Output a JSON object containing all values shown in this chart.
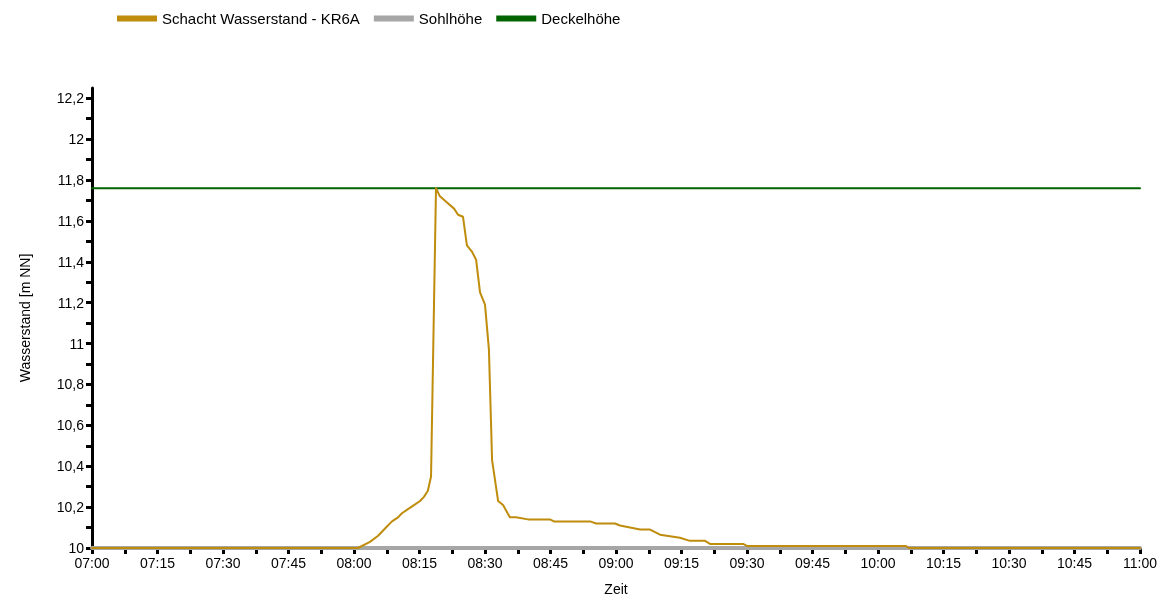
{
  "chart_data": {
    "type": "line",
    "xlabel": "Zeit",
    "ylabel": "Wasserstand [m NN]",
    "legend": "top",
    "grid": false,
    "marker": "none",
    "line_style": "solid",
    "xlim": [
      7,
      11
    ],
    "xticks": [
      {
        "value": 7,
        "label": "07:00"
      },
      {
        "value": 7.125,
        "label": null
      },
      {
        "value": 7.25,
        "label": "07:15"
      },
      {
        "value": 7.375,
        "label": null
      },
      {
        "value": 7.5,
        "label": "07:30"
      },
      {
        "value": 7.625,
        "label": null
      },
      {
        "value": 7.75,
        "label": "07:45"
      },
      {
        "value": 7.875,
        "label": null
      },
      {
        "value": 8,
        "label": "08:00"
      },
      {
        "value": 8.125,
        "label": null
      },
      {
        "value": 8.25,
        "label": "08:15"
      },
      {
        "value": 8.375,
        "label": null
      },
      {
        "value": 8.5,
        "label": "08:30"
      },
      {
        "value": 8.625,
        "label": null
      },
      {
        "value": 8.75,
        "label": "08:45"
      },
      {
        "value": 8.875,
        "label": null
      },
      {
        "value": 9,
        "label": "09:00"
      },
      {
        "value": 9.125,
        "label": null
      },
      {
        "value": 9.25,
        "label": "09:15"
      },
      {
        "value": 9.375,
        "label": null
      },
      {
        "value": 9.5,
        "label": "09:30"
      },
      {
        "value": 9.625,
        "label": null
      },
      {
        "value": 9.75,
        "label": "09:45"
      },
      {
        "value": 9.875,
        "label": null
      },
      {
        "value": 10,
        "label": "10:00"
      },
      {
        "value": 10.125,
        "label": null
      },
      {
        "value": 10.25,
        "label": "10:15"
      },
      {
        "value": 10.375,
        "label": null
      },
      {
        "value": 10.5,
        "label": "10:30"
      },
      {
        "value": 10.625,
        "label": null
      },
      {
        "value": 10.75,
        "label": "10:45"
      },
      {
        "value": 10.875,
        "label": null
      },
      {
        "value": 11,
        "label": "11:00"
      }
    ],
    "ylim": [
      10,
      12.25
    ],
    "yticks": [
      10,
      {
        "value": 10.1,
        "label": null
      },
      {
        "value": 10.2,
        "label": "10,2"
      },
      {
        "value": 10.3,
        "label": null
      },
      {
        "value": 10.4,
        "label": "10,4"
      },
      {
        "value": 10.5,
        "label": null
      },
      {
        "value": 10.6,
        "label": "10,6"
      },
      {
        "value": 10.7,
        "label": null
      },
      {
        "value": 10.8,
        "label": "10,8"
      },
      {
        "value": 10.9,
        "label": null
      },
      11,
      {
        "value": 11.1,
        "label": null
      },
      {
        "value": 11.2,
        "label": "11,2"
      },
      {
        "value": 11.3,
        "label": null
      },
      {
        "value": 11.4,
        "label": "11,4"
      },
      {
        "value": 11.5,
        "label": null
      },
      {
        "value": 11.6,
        "label": "11,6"
      },
      {
        "value": 11.7,
        "label": null
      },
      {
        "value": 11.8,
        "label": "11,8"
      },
      {
        "value": 11.9,
        "label": null
      },
      12,
      {
        "value": 12.1,
        "label": null
      },
      {
        "value": 12.2,
        "label": "12,2"
      }
    ],
    "series": [
      {
        "name": "Sohlhöhe",
        "color": "#a6a6a6",
        "x": [
          7,
          11
        ],
        "values": [
          10,
          10
        ]
      },
      {
        "name": "Deckelhöhe",
        "color": "#006400",
        "x": [
          7,
          11
        ],
        "values": [
          11.76,
          11.76
        ]
      },
      {
        "name": "Schacht Wasserstand - KR6A",
        "color": "#bf8c0c",
        "x": [
          7,
          8.015,
          8.061,
          8.092,
          8.122,
          8.145,
          8.168,
          8.183,
          8.206,
          8.229,
          8.252,
          8.267,
          8.282,
          8.294,
          8.313,
          8.328,
          8.355,
          8.382,
          8.397,
          8.416,
          8.431,
          8.45,
          8.466,
          8.481,
          8.5,
          8.515,
          8.527,
          8.55,
          8.569,
          8.595,
          8.618,
          8.664,
          8.748,
          8.763,
          8.901,
          8.924,
          8.996,
          9.015,
          9.092,
          9.13,
          9.168,
          9.244,
          9.282,
          9.34,
          9.359,
          9.485,
          9.5,
          10.107,
          10.118,
          11
        ],
        "values": [
          10,
          10,
          10.03,
          10.06,
          10.1,
          10.13,
          10.15,
          10.17,
          10.19,
          10.21,
          10.23,
          10.25,
          10.28,
          10.35,
          11.76,
          11.72,
          11.69,
          11.66,
          11.63,
          11.62,
          11.48,
          11.45,
          11.41,
          11.25,
          11.19,
          10.97,
          10.43,
          10.23,
          10.21,
          10.15,
          10.15,
          10.14,
          10.14,
          10.13,
          10.13,
          10.12,
          10.12,
          10.11,
          10.09,
          10.09,
          10.065,
          10.05,
          10.035,
          10.035,
          10.02,
          10.02,
          10.01,
          10.01,
          10,
          10
        ]
      }
    ]
  }
}
